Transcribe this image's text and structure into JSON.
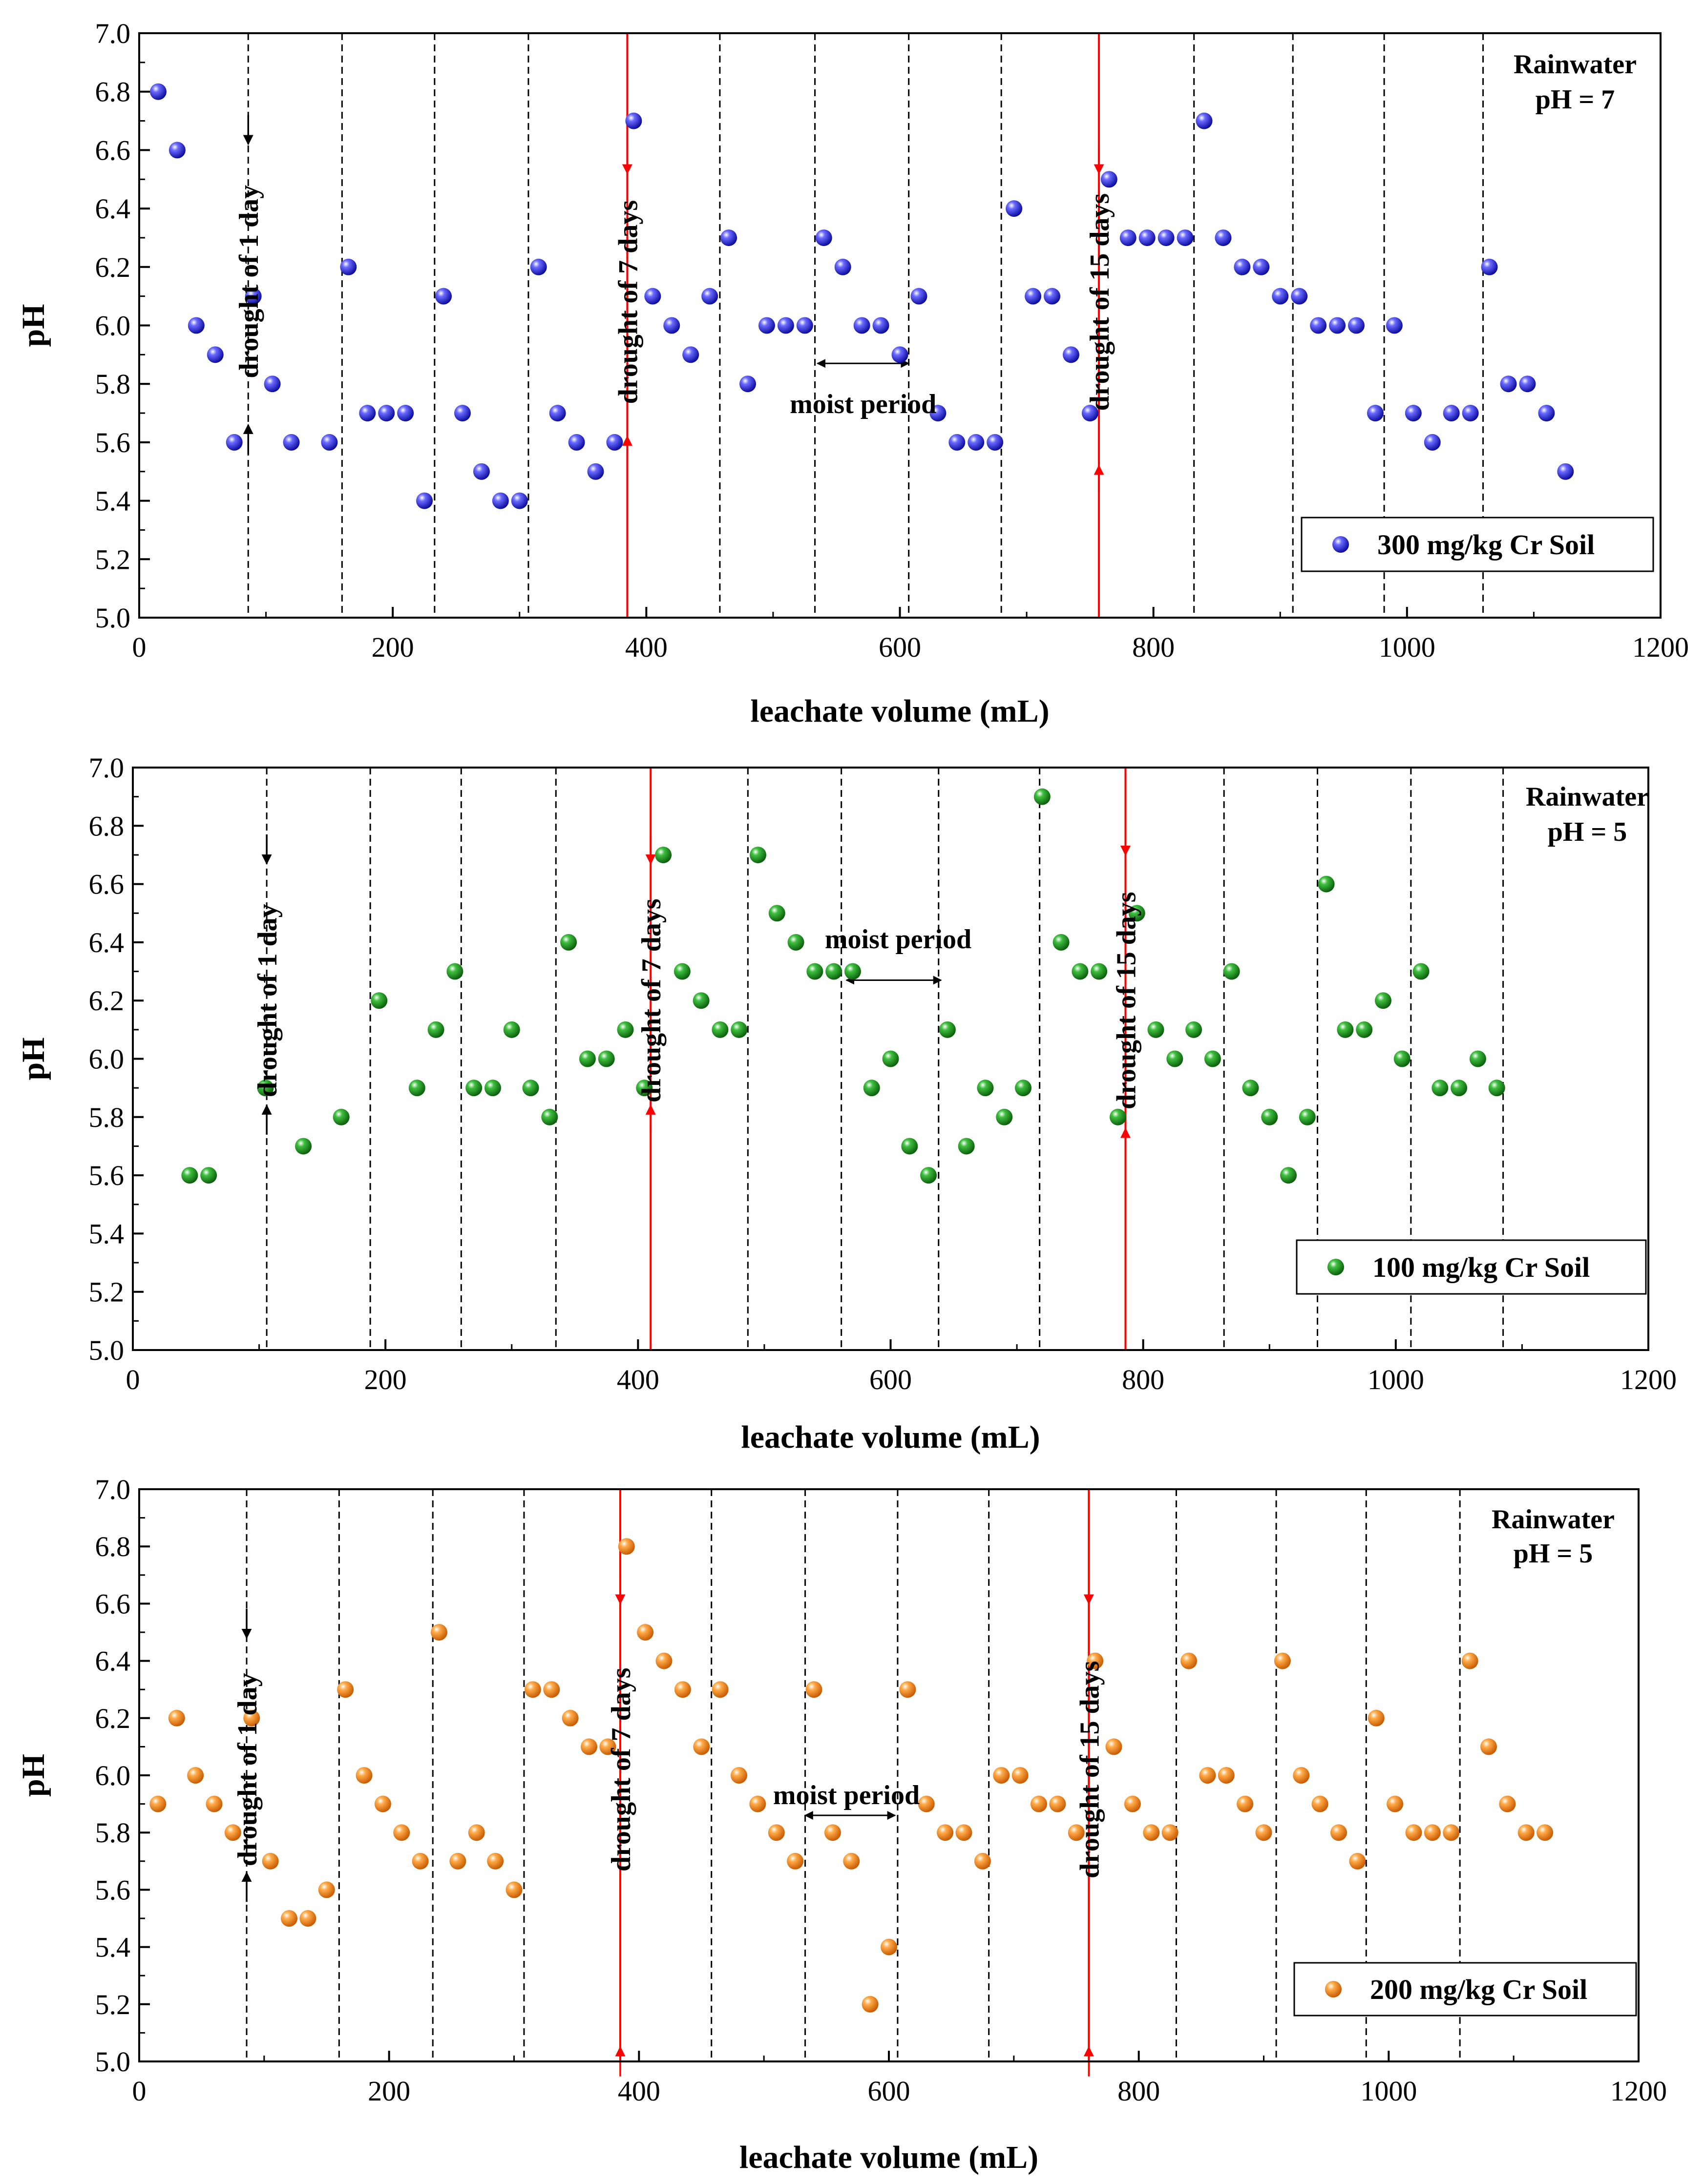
{
  "chart_data": [
    {
      "type": "scatter",
      "xlabel": "leachate volume (mL)",
      "ylabel": "pH",
      "xlim": [
        0,
        1200
      ],
      "ylim": [
        5.0,
        7.0
      ],
      "x_ticks": [
        0,
        200,
        400,
        600,
        800,
        1000,
        1200
      ],
      "y_ticks": [
        5.0,
        5.2,
        5.4,
        5.6,
        5.8,
        6.0,
        6.2,
        6.4,
        6.6,
        6.8,
        7.0
      ],
      "rain_line1": "Rainwater",
      "rain_line2": "pH = 7",
      "legend": "300 mg/kg Cr Soil",
      "color": "#1f1fe0",
      "dashed_lines_x": [
        86,
        160,
        233,
        307,
        458,
        533,
        607,
        680,
        832,
        910,
        982,
        1060
      ],
      "red_lines_x": [
        385,
        757
      ],
      "drought1": {
        "label": "drought of 1 day",
        "x": 86,
        "arrow_top": 6.62,
        "arrow_bottom": 5.66,
        "text_center_y": 6.15
      },
      "drought7": {
        "label": "drought of 7 days",
        "x": 385,
        "arrow_top": 6.52,
        "arrow_bottom": 5.62,
        "text_center_y": 6.08
      },
      "drought15": {
        "label": "drought of 15 days",
        "x": 757,
        "arrow_top": 6.52,
        "arrow_bottom": 5.52,
        "text_center_y": 6.08
      },
      "moist": {
        "label": "moist period",
        "x1": 535,
        "x2": 607,
        "y": 5.87,
        "text_x": 571,
        "text_y": 5.73
      },
      "points": [
        [
          15,
          6.8
        ],
        [
          30,
          6.6
        ],
        [
          45,
          6.0
        ],
        [
          60,
          5.9
        ],
        [
          75,
          5.6
        ],
        [
          90,
          6.1
        ],
        [
          105,
          5.8
        ],
        [
          120,
          5.6
        ],
        [
          150,
          5.6
        ],
        [
          165,
          6.2
        ],
        [
          180,
          5.7
        ],
        [
          195,
          5.7
        ],
        [
          210,
          5.7
        ],
        [
          225,
          5.4
        ],
        [
          240,
          6.1
        ],
        [
          255,
          5.7
        ],
        [
          270,
          5.5
        ],
        [
          285,
          5.4
        ],
        [
          300,
          5.4
        ],
        [
          315,
          6.2
        ],
        [
          330,
          5.7
        ],
        [
          345,
          5.6
        ],
        [
          360,
          5.5
        ],
        [
          375,
          5.6
        ],
        [
          390,
          6.7
        ],
        [
          405,
          6.1
        ],
        [
          420,
          6.0
        ],
        [
          435,
          5.9
        ],
        [
          450,
          6.1
        ],
        [
          465,
          6.3
        ],
        [
          480,
          5.8
        ],
        [
          495,
          6.0
        ],
        [
          510,
          6.0
        ],
        [
          525,
          6.0
        ],
        [
          540,
          6.3
        ],
        [
          555,
          6.2
        ],
        [
          570,
          6.0
        ],
        [
          585,
          6.0
        ],
        [
          600,
          5.9
        ],
        [
          615,
          6.1
        ],
        [
          630,
          5.7
        ],
        [
          645,
          5.6
        ],
        [
          660,
          5.6
        ],
        [
          675,
          5.6
        ],
        [
          690,
          6.4
        ],
        [
          705,
          6.1
        ],
        [
          720,
          6.1
        ],
        [
          735,
          5.9
        ],
        [
          750,
          5.7
        ],
        [
          765,
          6.5
        ],
        [
          780,
          6.3
        ],
        [
          795,
          6.3
        ],
        [
          810,
          6.3
        ],
        [
          825,
          6.3
        ],
        [
          840,
          6.7
        ],
        [
          855,
          6.3
        ],
        [
          870,
          6.2
        ],
        [
          885,
          6.2
        ],
        [
          900,
          6.1
        ],
        [
          915,
          6.1
        ],
        [
          930,
          6.0
        ],
        [
          945,
          6.0
        ],
        [
          960,
          6.0
        ],
        [
          975,
          5.7
        ],
        [
          990,
          6.0
        ],
        [
          1005,
          5.7
        ],
        [
          1020,
          5.6
        ],
        [
          1035,
          5.7
        ],
        [
          1050,
          5.7
        ],
        [
          1065,
          6.2
        ],
        [
          1080,
          5.8
        ],
        [
          1095,
          5.8
        ],
        [
          1110,
          5.7
        ],
        [
          1125,
          5.5
        ]
      ]
    },
    {
      "type": "scatter",
      "xlabel": "leachate volume (mL)",
      "ylabel": "pH",
      "xlim": [
        0,
        1200
      ],
      "ylim": [
        5.0,
        7.0
      ],
      "x_ticks": [
        0,
        200,
        400,
        600,
        800,
        1000,
        1200
      ],
      "y_ticks": [
        5.0,
        5.2,
        5.4,
        5.6,
        5.8,
        6.0,
        6.2,
        6.4,
        6.6,
        6.8,
        7.0
      ],
      "rain_line1": "Rainwater",
      "rain_line2": "pH = 5",
      "legend": "100 mg/kg Cr Soil",
      "color": "#1a8c1a",
      "dashed_lines_x": [
        106,
        188,
        260,
        335,
        487,
        561,
        638,
        718,
        864,
        938,
        1012,
        1085
      ],
      "red_lines_x": [
        410,
        786
      ],
      "drought1": {
        "label": "drought of 1 day",
        "x": 106,
        "arrow_top": 6.67,
        "arrow_bottom": 5.84,
        "text_center_y": 6.2
      },
      "drought7": {
        "label": "drought of 7 days",
        "x": 410,
        "arrow_top": 6.67,
        "arrow_bottom": 5.84,
        "text_center_y": 6.2
      },
      "drought15": {
        "label": "drought of 15 days",
        "x": 786,
        "arrow_top": 6.7,
        "arrow_bottom": 5.76,
        "text_center_y": 6.2
      },
      "moist": {
        "label": "moist period",
        "x1": 565,
        "x2": 640,
        "y": 6.27,
        "text_x": 606,
        "text_y": 6.41
      },
      "points": [
        [
          45,
          5.6
        ],
        [
          60,
          5.6
        ],
        [
          105,
          5.9
        ],
        [
          135,
          5.7
        ],
        [
          165,
          5.8
        ],
        [
          195,
          6.2
        ],
        [
          225,
          5.9
        ],
        [
          240,
          6.1
        ],
        [
          255,
          6.3
        ],
        [
          270,
          5.9
        ],
        [
          285,
          5.9
        ],
        [
          300,
          6.1
        ],
        [
          315,
          5.9
        ],
        [
          330,
          5.8
        ],
        [
          345,
          6.4
        ],
        [
          360,
          6.0
        ],
        [
          375,
          6.0
        ],
        [
          390,
          6.1
        ],
        [
          405,
          5.9
        ],
        [
          420,
          6.7
        ],
        [
          435,
          6.3
        ],
        [
          450,
          6.2
        ],
        [
          465,
          6.1
        ],
        [
          480,
          6.1
        ],
        [
          495,
          6.7
        ],
        [
          510,
          6.5
        ],
        [
          525,
          6.4
        ],
        [
          540,
          6.3
        ],
        [
          555,
          6.3
        ],
        [
          570,
          6.3
        ],
        [
          585,
          5.9
        ],
        [
          600,
          6.0
        ],
        [
          615,
          5.7
        ],
        [
          630,
          5.6
        ],
        [
          645,
          6.1
        ],
        [
          660,
          5.7
        ],
        [
          675,
          5.9
        ],
        [
          690,
          5.8
        ],
        [
          705,
          5.9
        ],
        [
          720,
          6.9
        ],
        [
          735,
          6.4
        ],
        [
          750,
          6.3
        ],
        [
          765,
          6.3
        ],
        [
          780,
          5.8
        ],
        [
          795,
          6.5
        ],
        [
          810,
          6.1
        ],
        [
          825,
          6.0
        ],
        [
          840,
          6.1
        ],
        [
          855,
          6.0
        ],
        [
          870,
          6.3
        ],
        [
          885,
          5.9
        ],
        [
          900,
          5.8
        ],
        [
          915,
          5.6
        ],
        [
          930,
          5.8
        ],
        [
          945,
          6.6
        ],
        [
          960,
          6.1
        ],
        [
          975,
          6.1
        ],
        [
          990,
          6.2
        ],
        [
          1005,
          6.0
        ],
        [
          1020,
          6.3
        ],
        [
          1035,
          5.9
        ],
        [
          1050,
          5.9
        ],
        [
          1065,
          6.0
        ],
        [
          1080,
          5.9
        ]
      ]
    },
    {
      "type": "scatter",
      "xlabel": "leachate volume (mL)",
      "ylabel": "pH",
      "xlim": [
        0,
        1200
      ],
      "ylim": [
        5.0,
        7.0
      ],
      "x_ticks": [
        0,
        200,
        400,
        600,
        800,
        1000,
        1200
      ],
      "y_ticks": [
        5.0,
        5.2,
        5.4,
        5.6,
        5.8,
        6.0,
        6.2,
        6.4,
        6.6,
        6.8,
        7.0
      ],
      "rain_line1": "Rainwater",
      "rain_line2": "pH = 5",
      "legend": "200 mg/kg Cr Soil",
      "color": "#f07c12",
      "dashed_lines_x": [
        86,
        160,
        235,
        308,
        458,
        533,
        607,
        680,
        830,
        910,
        982,
        1057
      ],
      "red_lines_x": [
        385,
        760
      ],
      "drought1": {
        "label": "drought of 1 day",
        "x": 86,
        "arrow_top": 6.48,
        "arrow_bottom": 5.66,
        "text_center_y": 6.02
      },
      "drought7": {
        "label": "drought of 7 days",
        "x": 385,
        "arrow_top": 6.6,
        "arrow_bottom": 5.05,
        "text_center_y": 6.02
      },
      "drought15": {
        "label": "drought of 15 days",
        "x": 760,
        "arrow_top": 6.6,
        "arrow_bottom": 5.05,
        "text_center_y": 6.02
      },
      "moist": {
        "label": "moist period",
        "x1": 533,
        "x2": 605,
        "y": 5.86,
        "text_x": 566,
        "text_y": 5.93
      },
      "points": [
        [
          15,
          5.9
        ],
        [
          30,
          6.2
        ],
        [
          45,
          6.0
        ],
        [
          60,
          5.9
        ],
        [
          75,
          5.8
        ],
        [
          90,
          6.2
        ],
        [
          105,
          5.7
        ],
        [
          120,
          5.5
        ],
        [
          135,
          5.5
        ],
        [
          150,
          5.6
        ],
        [
          165,
          6.3
        ],
        [
          180,
          6.0
        ],
        [
          195,
          5.9
        ],
        [
          210,
          5.8
        ],
        [
          225,
          5.7
        ],
        [
          240,
          6.5
        ],
        [
          255,
          5.7
        ],
        [
          270,
          5.8
        ],
        [
          285,
          5.7
        ],
        [
          300,
          5.6
        ],
        [
          315,
          6.3
        ],
        [
          330,
          6.3
        ],
        [
          345,
          6.2
        ],
        [
          360,
          6.1
        ],
        [
          375,
          6.1
        ],
        [
          390,
          6.8
        ],
        [
          405,
          6.5
        ],
        [
          420,
          6.4
        ],
        [
          435,
          6.3
        ],
        [
          450,
          6.1
        ],
        [
          465,
          6.3
        ],
        [
          480,
          6.0
        ],
        [
          495,
          5.9
        ],
        [
          510,
          5.8
        ],
        [
          525,
          5.7
        ],
        [
          540,
          6.3
        ],
        [
          555,
          5.8
        ],
        [
          570,
          5.7
        ],
        [
          585,
          5.2
        ],
        [
          600,
          5.4
        ],
        [
          615,
          6.3
        ],
        [
          630,
          5.9
        ],
        [
          645,
          5.8
        ],
        [
          660,
          5.8
        ],
        [
          675,
          5.7
        ],
        [
          690,
          6.0
        ],
        [
          705,
          6.0
        ],
        [
          720,
          5.9
        ],
        [
          735,
          5.9
        ],
        [
          750,
          5.8
        ],
        [
          765,
          6.4
        ],
        [
          780,
          6.1
        ],
        [
          795,
          5.9
        ],
        [
          810,
          5.8
        ],
        [
          825,
          5.8
        ],
        [
          840,
          6.4
        ],
        [
          855,
          6.0
        ],
        [
          870,
          6.0
        ],
        [
          885,
          5.9
        ],
        [
          900,
          5.8
        ],
        [
          915,
          6.4
        ],
        [
          930,
          6.0
        ],
        [
          945,
          5.9
        ],
        [
          960,
          5.8
        ],
        [
          975,
          5.7
        ],
        [
          990,
          6.2
        ],
        [
          1005,
          5.9
        ],
        [
          1020,
          5.8
        ],
        [
          1035,
          5.8
        ],
        [
          1050,
          5.8
        ],
        [
          1065,
          6.4
        ],
        [
          1080,
          6.1
        ],
        [
          1095,
          5.9
        ],
        [
          1110,
          5.8
        ],
        [
          1125,
          5.8
        ]
      ]
    }
  ]
}
